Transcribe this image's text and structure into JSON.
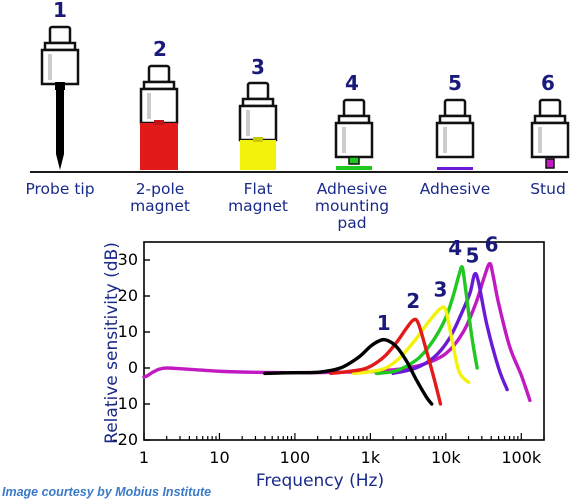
{
  "mounts": [
    {
      "number": "1",
      "lines": [
        "Probe tip"
      ],
      "color": "#000000"
    },
    {
      "number": "2",
      "lines": [
        "2-pole",
        "magnet"
      ],
      "color": "#e21a1a"
    },
    {
      "number": "3",
      "lines": [
        "Flat",
        "magnet"
      ],
      "color": "#f2f20a"
    },
    {
      "number": "4",
      "lines": [
        "Adhesive",
        "mounting",
        "pad"
      ],
      "color": "#22c822"
    },
    {
      "number": "5",
      "lines": [
        "Adhesive"
      ],
      "color": "#6a1ad6"
    },
    {
      "number": "6",
      "lines": [
        "Stud"
      ],
      "color": "#c21ac2"
    }
  ],
  "credit": "Image courtesy by Mobius Institute",
  "chart_data": {
    "type": "line",
    "xlabel": "Frequency (Hz)",
    "ylabel": "Relative sensitivity (dB)",
    "xscale": "log",
    "xlim": [
      1,
      200000
    ],
    "ylim": [
      -20,
      35
    ],
    "xticks": [
      1,
      10,
      100,
      1000,
      10000,
      100000
    ],
    "xtick_labels": [
      "1",
      "10",
      "100",
      "1k",
      "10k",
      "100k"
    ],
    "yticks": [
      -20,
      -10,
      0,
      10,
      20,
      30
    ],
    "ytick_labels": [
      "-20",
      "-10",
      "0",
      "10",
      "20",
      "30"
    ],
    "series": [
      {
        "name": "1",
        "color": "#000000",
        "x": [
          40,
          100,
          200,
          400,
          700,
          1000,
          1300,
          1600,
          2200,
          3000,
          4000,
          5500,
          6500
        ],
        "y": [
          -1.5,
          -1.3,
          -1.2,
          0,
          3,
          6,
          7.5,
          7.8,
          6,
          2,
          -3,
          -8,
          -10
        ]
      },
      {
        "name": "2",
        "color": "#e21a1a",
        "x": [
          300,
          500,
          900,
          1500,
          2200,
          3000,
          3700,
          4300,
          5500,
          7000,
          8500
        ],
        "y": [
          -1.5,
          -1,
          0,
          3,
          7,
          11,
          13.3,
          12.5,
          5,
          -3,
          -10
        ]
      },
      {
        "name": "3",
        "color": "#f2f20a",
        "x": [
          600,
          1000,
          1600,
          2500,
          4000,
          6000,
          8500,
          10000,
          12000,
          15000,
          20000
        ],
        "y": [
          -1.5,
          -1,
          0,
          3,
          8,
          13,
          16.5,
          16,
          8,
          -1,
          -4
        ]
      },
      {
        "name": "4",
        "color": "#22c822",
        "x": [
          1200,
          2000,
          3000,
          4500,
          7000,
          10000,
          12500,
          15000,
          16500,
          18000,
          22000,
          26000
        ],
        "y": [
          -1.5,
          -1,
          0.5,
          3,
          8,
          14,
          20,
          26,
          28,
          23,
          9,
          0
        ]
      },
      {
        "name": "5",
        "color": "#6a1ad6",
        "x": [
          2000,
          4000,
          7000,
          11000,
          16000,
          21000,
          24000,
          27000,
          35000,
          50000,
          65000
        ],
        "y": [
          -1.5,
          0,
          3,
          8,
          15,
          21,
          26,
          24,
          12,
          0,
          -6
        ]
      },
      {
        "name": "6",
        "color": "#c21ac2",
        "x": [
          1,
          1.1,
          1.3,
          1.6,
          2,
          3,
          5,
          10,
          30,
          100,
          300,
          1000,
          2000,
          3000,
          5000,
          10000,
          17000,
          25000,
          32000,
          38000,
          42000,
          50000,
          70000,
          100000,
          130000
        ],
        "y": [
          -2.5,
          -2.2,
          -1.2,
          -0.3,
          0,
          -0.2,
          -0.5,
          -0.9,
          -1.2,
          -1.3,
          -1.2,
          -1,
          -0.5,
          0,
          1,
          4,
          10,
          18,
          25,
          29,
          26,
          18,
          6,
          -2,
          -9
        ]
      }
    ]
  }
}
